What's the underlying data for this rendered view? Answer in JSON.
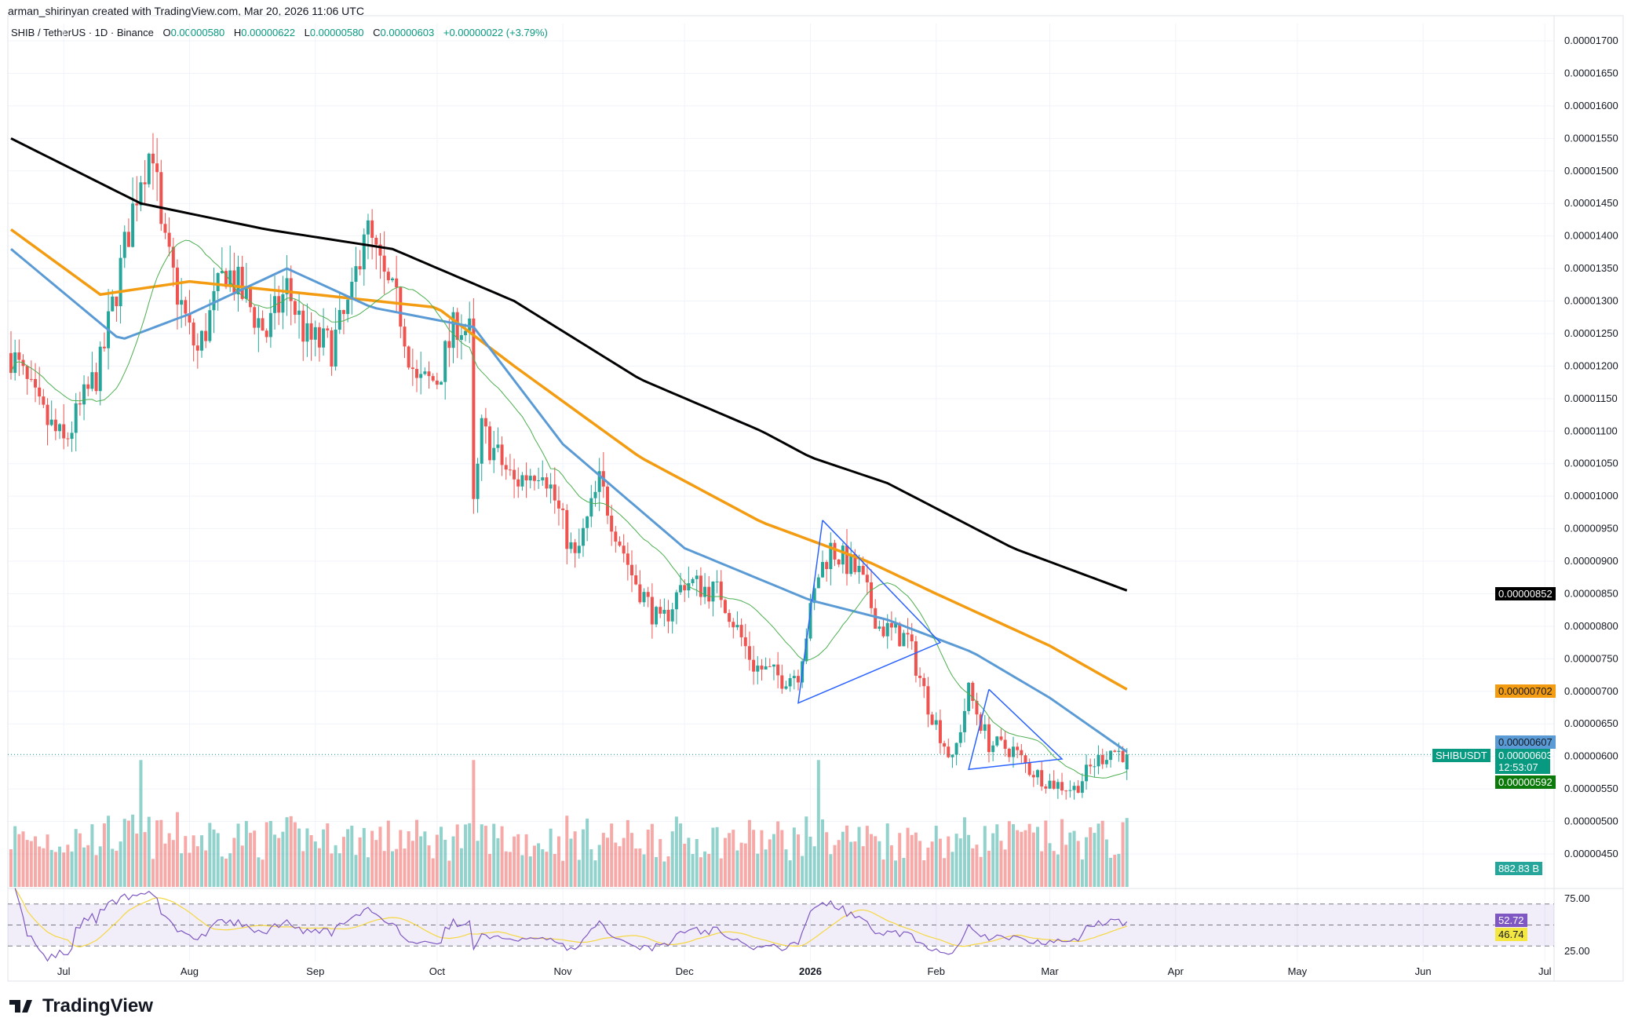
{
  "credit": "arman_shirinyan created with TradingView.com, Mar 20, 2026 11:06 UTC",
  "legend": {
    "symbol": "SHIB / TetherUS · 1D · Binance",
    "o_label": "O",
    "o": "0.00000580",
    "h_label": "H",
    "h": "0.00000622",
    "l_label": "L",
    "l": "0.00000580",
    "c_label": "C",
    "c": "0.00000603",
    "change": "+0.00000022 (+3.79%)"
  },
  "tags": {
    "symbol": "SHIBUSDT",
    "ma50": "0.00000607",
    "last": "0.00000603",
    "countdown": "12:53:07",
    "ma20": "0.00000592",
    "ma200": "0.00000852",
    "ma100": "0.00000702",
    "volume": "882.83 B",
    "rsi": "52.72",
    "rsi_ma": "46.74"
  },
  "colors": {
    "up": "#26a69a",
    "down": "#ef5350",
    "ma200": "#000000",
    "ma100": "#f39c12",
    "ma50": "#5b9bd5",
    "ma20": "#4caf50",
    "rsi": "#7e57c2",
    "rsi_ma": "#f5d742",
    "trendline": "#2962ff"
  },
  "footer": {
    "logo": "TradingView"
  },
  "chart_data": {
    "type": "candlestick",
    "price_ticks": [
      "0.00001700",
      "0.00001650",
      "0.00001600",
      "0.00001550",
      "0.00001500",
      "0.00001450",
      "0.00001400",
      "0.00001350",
      "0.00001300",
      "0.00001250",
      "0.00001200",
      "0.00001150",
      "0.00001100",
      "0.00001050",
      "0.00001000",
      "0.00000950",
      "0.00000900",
      "0.00000850",
      "0.00000800",
      "0.00000750",
      "0.00000700",
      "0.00000650",
      "0.00000600",
      "0.00000550",
      "0.00000500",
      "0.00000450"
    ],
    "time_ticks": [
      [
        "Jul",
        "2025-07-01"
      ],
      [
        "Aug",
        "2025-08-01"
      ],
      [
        "Sep",
        "2025-09-01"
      ],
      [
        "Oct",
        "2025-10-01"
      ],
      [
        "Nov",
        "2025-11-01"
      ],
      [
        "Dec",
        "2025-12-01"
      ],
      [
        "2026",
        "2026-01-01"
      ],
      [
        "Feb",
        "2026-02-01"
      ],
      [
        "Mar",
        "2026-03-01"
      ],
      [
        "Apr",
        "2026-04-01"
      ],
      [
        "May",
        "2026-05-01"
      ],
      [
        "Jun",
        "2026-06-01"
      ],
      [
        "Jul",
        "2026-07-01"
      ]
    ],
    "rsi_ticks": [
      "75.00",
      "25.00"
    ],
    "price_unit": "1e-8 USDT",
    "close_keypoints": [
      [
        "2025-06-18",
        1220
      ],
      [
        "2025-06-25",
        1130
      ],
      [
        "2025-07-01",
        1080
      ],
      [
        "2025-07-10",
        1200
      ],
      [
        "2025-07-15",
        1350
      ],
      [
        "2025-07-20",
        1500
      ],
      [
        "2025-07-23",
        1540
      ],
      [
        "2025-07-25",
        1400
      ],
      [
        "2025-08-01",
        1250
      ],
      [
        "2025-08-03",
        1220
      ],
      [
        "2025-08-10",
        1350
      ],
      [
        "2025-08-15",
        1300
      ],
      [
        "2025-08-20",
        1250
      ],
      [
        "2025-08-25",
        1320
      ],
      [
        "2025-08-30",
        1240
      ],
      [
        "2025-09-05",
        1230
      ],
      [
        "2025-09-10",
        1300
      ],
      [
        "2025-09-13",
        1420
      ],
      [
        "2025-09-18",
        1330
      ],
      [
        "2025-09-22",
        1280
      ],
      [
        "2025-09-26",
        1170
      ],
      [
        "2025-10-01",
        1180
      ],
      [
        "2025-10-06",
        1270
      ],
      [
        "2025-10-09",
        1250
      ],
      [
        "2025-10-10",
        980
      ],
      [
        "2025-10-12",
        1100
      ],
      [
        "2025-10-20",
        1020
      ],
      [
        "2025-10-27",
        1050
      ],
      [
        "2025-11-04",
        900
      ],
      [
        "2025-11-10",
        1020
      ],
      [
        "2025-11-18",
        880
      ],
      [
        "2025-11-25",
        800
      ],
      [
        "2025-12-01",
        870
      ],
      [
        "2025-12-10",
        850
      ],
      [
        "2025-12-18",
        740
      ],
      [
        "2025-12-25",
        720
      ],
      [
        "2025-12-29",
        730
      ],
      [
        "2026-01-03",
        880
      ],
      [
        "2026-01-06",
        920
      ],
      [
        "2026-01-13",
        880
      ],
      [
        "2026-01-18",
        800
      ],
      [
        "2026-01-25",
        780
      ],
      [
        "2026-01-30",
        680
      ],
      [
        "2026-02-05",
        590
      ],
      [
        "2026-02-09",
        700
      ],
      [
        "2026-02-14",
        620
      ],
      [
        "2026-02-20",
        610
      ],
      [
        "2026-02-24",
        580
      ],
      [
        "2026-03-01",
        560
      ],
      [
        "2026-03-07",
        550
      ],
      [
        "2026-03-12",
        590
      ],
      [
        "2026-03-16",
        610
      ],
      [
        "2026-03-20",
        603
      ]
    ],
    "ma200": [
      [
        "2025-06-18",
        1550
      ],
      [
        "2025-07-20",
        1450
      ],
      [
        "2025-08-20",
        1410
      ],
      [
        "2025-09-20",
        1380
      ],
      [
        "2025-10-20",
        1300
      ],
      [
        "2025-11-20",
        1180
      ],
      [
        "2025-12-20",
        1100
      ],
      [
        "2026-01-01",
        1060
      ],
      [
        "2026-01-20",
        1020
      ],
      [
        "2026-02-20",
        920
      ],
      [
        "2026-03-20",
        855
      ]
    ],
    "ma100": [
      [
        "2025-06-18",
        1410
      ],
      [
        "2025-07-10",
        1310
      ],
      [
        "2025-08-01",
        1330
      ],
      [
        "2025-09-01",
        1310
      ],
      [
        "2025-10-01",
        1290
      ],
      [
        "2025-10-20",
        1200
      ],
      [
        "2025-11-20",
        1060
      ],
      [
        "2025-12-20",
        960
      ],
      [
        "2026-01-15",
        900
      ],
      [
        "2026-02-01",
        850
      ],
      [
        "2026-03-01",
        770
      ],
      [
        "2026-03-20",
        703
      ]
    ],
    "ma50": [
      [
        "2025-06-18",
        1380
      ],
      [
        "2025-07-15",
        1240
      ],
      [
        "2025-08-01",
        1280
      ],
      [
        "2025-08-25",
        1350
      ],
      [
        "2025-09-15",
        1290
      ],
      [
        "2025-10-10",
        1260
      ],
      [
        "2025-11-01",
        1080
      ],
      [
        "2025-12-01",
        920
      ],
      [
        "2026-01-01",
        840
      ],
      [
        "2026-01-20",
        810
      ],
      [
        "2026-02-10",
        760
      ],
      [
        "2026-03-01",
        690
      ],
      [
        "2026-03-20",
        607
      ]
    ],
    "trendlines": [
      [
        [
          "2026-01-04",
          963
        ],
        [
          "2026-02-02",
          775
        ],
        [
          "2025-12-29",
          682
        ],
        [
          "2026-01-04",
          963
        ]
      ],
      [
        [
          "2026-02-14",
          703
        ],
        [
          "2026-03-04",
          596
        ],
        [
          "2026-02-09",
          580
        ],
        [
          "2026-02-14",
          703
        ]
      ]
    ]
  }
}
